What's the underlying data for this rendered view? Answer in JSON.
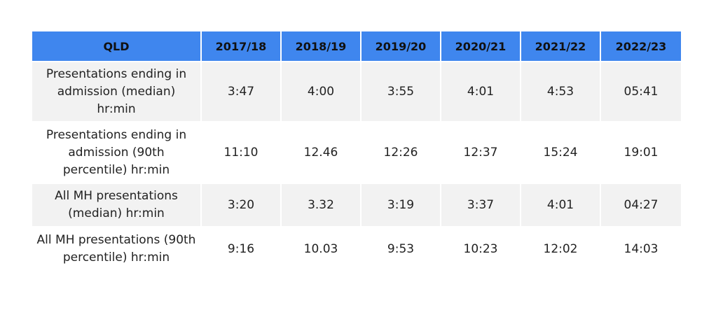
{
  "table": {
    "header": [
      "QLD",
      "2017/18",
      "2018/19",
      "2019/20",
      "2020/21",
      "2021/22",
      "2022/23"
    ],
    "rows": [
      {
        "label": "Presentations ending in admission (median) hr:min",
        "values": [
          "3:47",
          "4:00",
          "3:55",
          "4:01",
          "4:53",
          "05:41"
        ]
      },
      {
        "label": "Presentations ending in admission (90th percentile) hr:min",
        "values": [
          "11:10",
          "12.46",
          "12:26",
          "12:37",
          "15:24",
          "19:01"
        ]
      },
      {
        "label": "All MH presentations (median) hr:min",
        "values": [
          "3:20",
          "3.32",
          "3:19",
          "3:37",
          "4:01",
          "04:27"
        ]
      },
      {
        "label": "All MH presentations (90th percentile) hr:min",
        "values": [
          "9:16",
          "10.03",
          "9:53",
          "10:23",
          "12:02",
          "14:03"
        ]
      }
    ]
  },
  "colors": {
    "header_bg": "#3f86ee",
    "shaded_row_bg": "#f2f2f2"
  }
}
